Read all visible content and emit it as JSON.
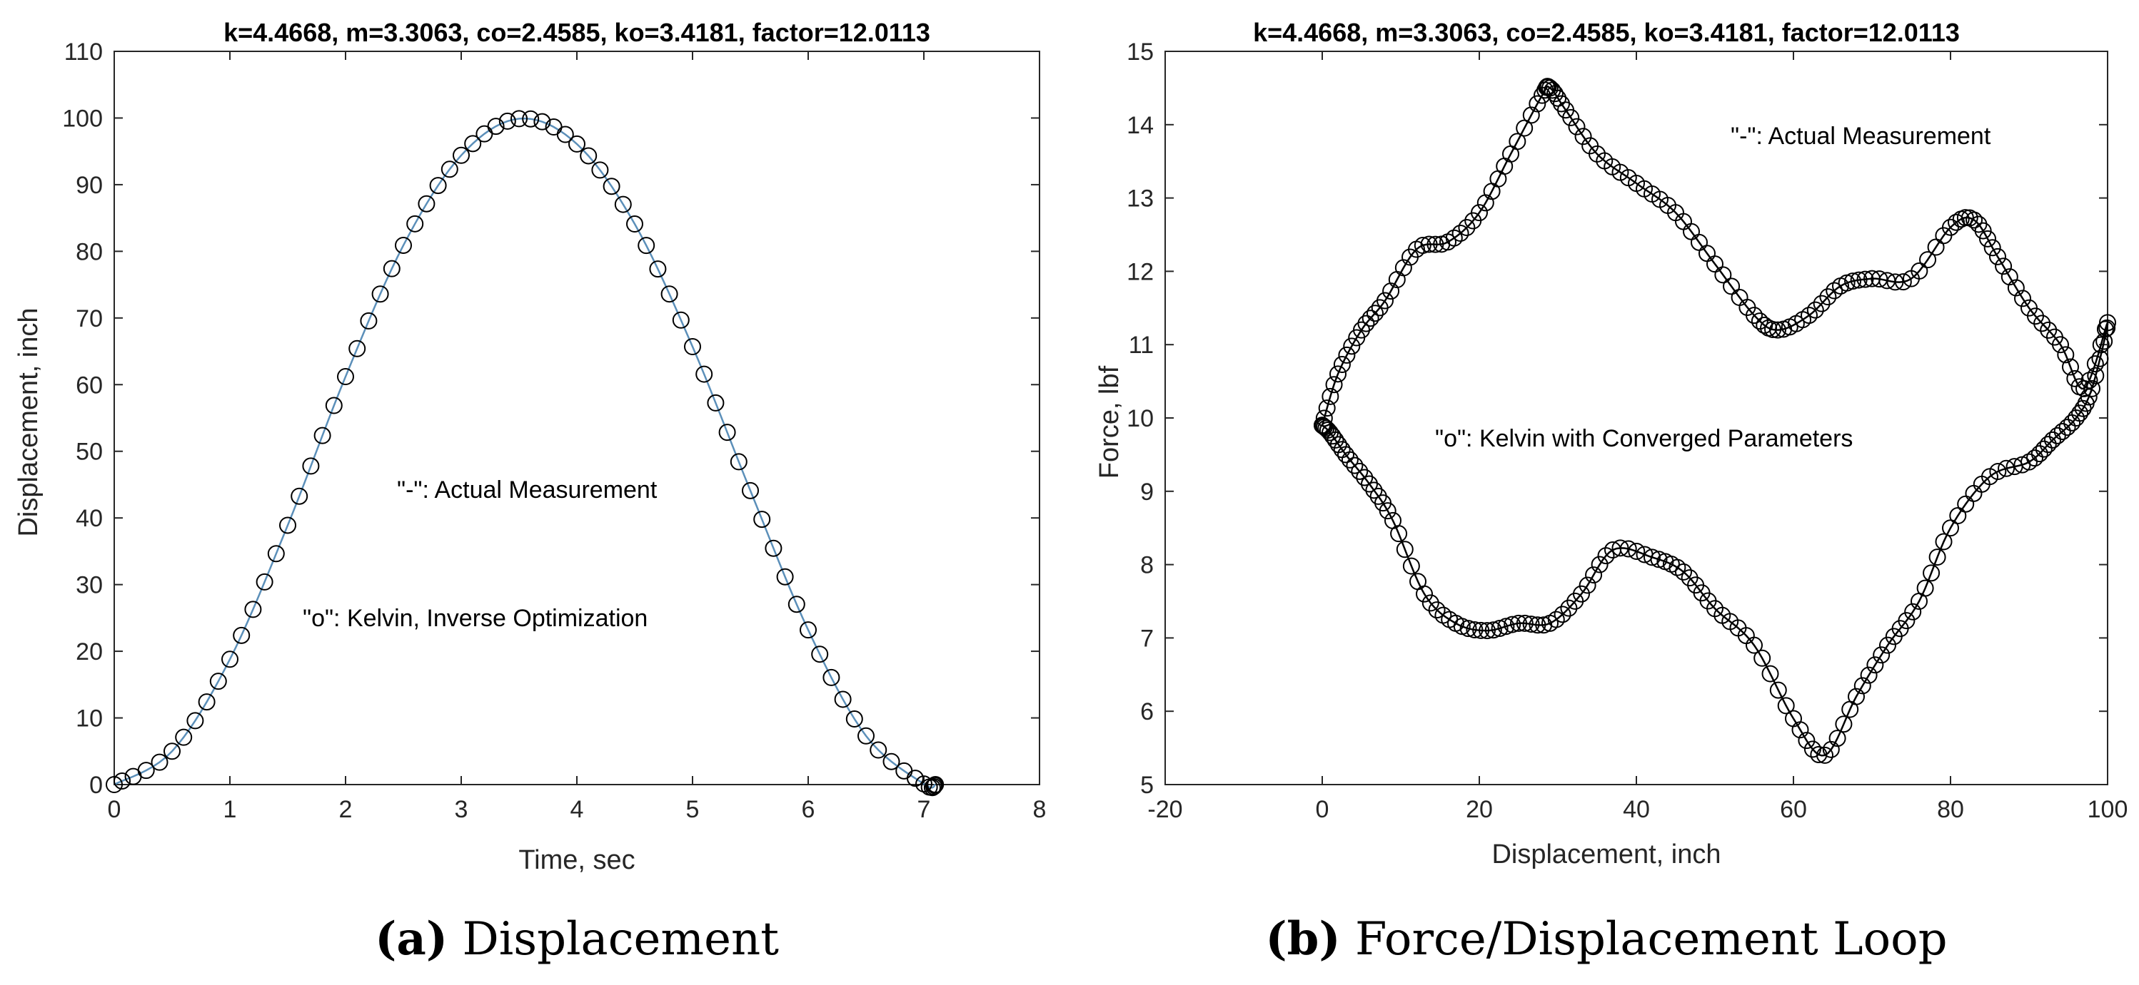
{
  "chart_data": [
    {
      "type": "line",
      "title": "k=4.4668, m=3.3063, co=2.4585, ko=3.4181, factor=12.0113",
      "xlabel": "Time, sec",
      "ylabel": "Displacement, inch",
      "xlim": [
        0,
        8
      ],
      "ylim": [
        0,
        110
      ],
      "xticks": [
        0,
        1,
        2,
        3,
        4,
        5,
        6,
        7,
        8
      ],
      "yticks": [
        0,
        10,
        20,
        30,
        40,
        50,
        60,
        70,
        80,
        90,
        100,
        110
      ],
      "grid": false,
      "annotations": [
        {
          "text": "\"-\": Actual Measurement",
          "x": 3.8,
          "y": 45
        },
        {
          "text": "\"o\": Kelvin, Inverse Optimization",
          "x": 2.6,
          "y": 25
        }
      ],
      "series": [
        {
          "name": "Actual Measurement",
          "style": "line",
          "color": "#5b8fb9",
          "x": [
            0.0,
            0.5,
            1.0,
            1.5,
            2.0,
            2.5,
            3.0,
            3.5,
            4.0,
            4.5,
            5.0,
            5.5,
            6.0,
            6.5,
            7.0,
            7.1
          ],
          "y": [
            0.0,
            5.0,
            18.8,
            38.9,
            61.2,
            80.9,
            94.4,
            99.9,
            96.1,
            84.1,
            65.7,
            44.1,
            23.2,
            7.3,
            0.1,
            0.0
          ]
        },
        {
          "name": "Kelvin, Inverse Optimization",
          "style": "circles",
          "color": "#000000",
          "x": [
            0.0,
            0.5,
            1.0,
            1.5,
            2.0,
            2.5,
            3.0,
            3.5,
            4.0,
            4.5,
            5.0,
            5.5,
            6.0,
            6.5,
            7.0,
            7.1
          ],
          "y": [
            0.0,
            5.0,
            18.8,
            38.9,
            61.2,
            80.9,
            94.4,
            99.9,
            96.1,
            84.1,
            65.7,
            44.1,
            23.2,
            7.3,
            0.1,
            0.0
          ]
        }
      ],
      "caption_label": "(a)",
      "caption_text": "Displacement"
    },
    {
      "type": "scatter",
      "title": "k=4.4668, m=3.3063, co=2.4585, ko=3.4181, factor=12.0113",
      "xlabel": "Displacement, inch",
      "ylabel": "Force, lbf",
      "xlim": [
        -20,
        100
      ],
      "ylim": [
        5,
        15
      ],
      "xticks": [
        -20,
        0,
        20,
        40,
        60,
        80,
        100
      ],
      "yticks": [
        5,
        6,
        7,
        8,
        9,
        10,
        11,
        12,
        13,
        14,
        15
      ],
      "grid": false,
      "annotations": [
        {
          "text": "\"-\": Actual Measurement",
          "x": 66,
          "y": 14.0
        },
        {
          "text": "\"o\": Kelvin with Converged Parameters",
          "x": 38,
          "y": 9.8
        }
      ],
      "series": [
        {
          "name": "Actual Measurement",
          "style": "line",
          "color": "#000000",
          "x": [
            0,
            2,
            5,
            8,
            12,
            16,
            20,
            24,
            28,
            29,
            31,
            35,
            40,
            45,
            50,
            55,
            58,
            62,
            66,
            70,
            75,
            80,
            83,
            86,
            90,
            94,
            97,
            100,
            98,
            96,
            93,
            90,
            85,
            80,
            76,
            72,
            68,
            64,
            60,
            55,
            50,
            46,
            42,
            37,
            33,
            29,
            25,
            21,
            17,
            13,
            9,
            6,
            3,
            1,
            0
          ],
          "y": [
            9.9,
            10.6,
            11.2,
            11.6,
            12.3,
            12.4,
            12.8,
            13.6,
            14.4,
            14.5,
            14.2,
            13.6,
            13.2,
            12.8,
            12.1,
            11.4,
            11.2,
            11.4,
            11.8,
            11.9,
            11.9,
            12.6,
            12.7,
            12.2,
            11.5,
            11.0,
            10.4,
            11.3,
            10.4,
            10.0,
            9.7,
            9.4,
            9.2,
            8.5,
            7.5,
            6.9,
            6.2,
            5.4,
            5.9,
            6.9,
            7.4,
            7.9,
            8.1,
            8.2,
            7.6,
            7.2,
            7.2,
            7.1,
            7.2,
            7.6,
            8.6,
            9.1,
            9.5,
            9.8,
            9.9
          ]
        },
        {
          "name": "Kelvin with Converged Parameters",
          "style": "circles",
          "color": "#000000",
          "x": [
            0,
            2,
            5,
            8,
            12,
            16,
            20,
            24,
            28,
            29,
            31,
            35,
            40,
            45,
            50,
            55,
            58,
            62,
            66,
            70,
            75,
            80,
            83,
            86,
            90,
            94,
            97,
            100,
            98,
            96,
            93,
            90,
            85,
            80,
            76,
            72,
            68,
            64,
            60,
            55,
            50,
            46,
            42,
            37,
            33,
            29,
            25,
            21,
            17,
            13,
            9,
            6,
            3,
            1,
            0
          ],
          "y": [
            9.9,
            10.6,
            11.2,
            11.6,
            12.3,
            12.4,
            12.8,
            13.6,
            14.4,
            14.5,
            14.2,
            13.6,
            13.2,
            12.8,
            12.1,
            11.4,
            11.2,
            11.4,
            11.8,
            11.9,
            11.9,
            12.6,
            12.7,
            12.2,
            11.5,
            11.0,
            10.4,
            11.3,
            10.4,
            10.0,
            9.7,
            9.4,
            9.2,
            8.5,
            7.5,
            6.9,
            6.2,
            5.4,
            5.9,
            6.9,
            7.4,
            7.9,
            8.1,
            8.2,
            7.6,
            7.2,
            7.2,
            7.1,
            7.2,
            7.6,
            8.6,
            9.1,
            9.5,
            9.8,
            9.9
          ]
        }
      ],
      "caption_label": "(b)",
      "caption_text": "Force/Displacement Loop"
    }
  ]
}
